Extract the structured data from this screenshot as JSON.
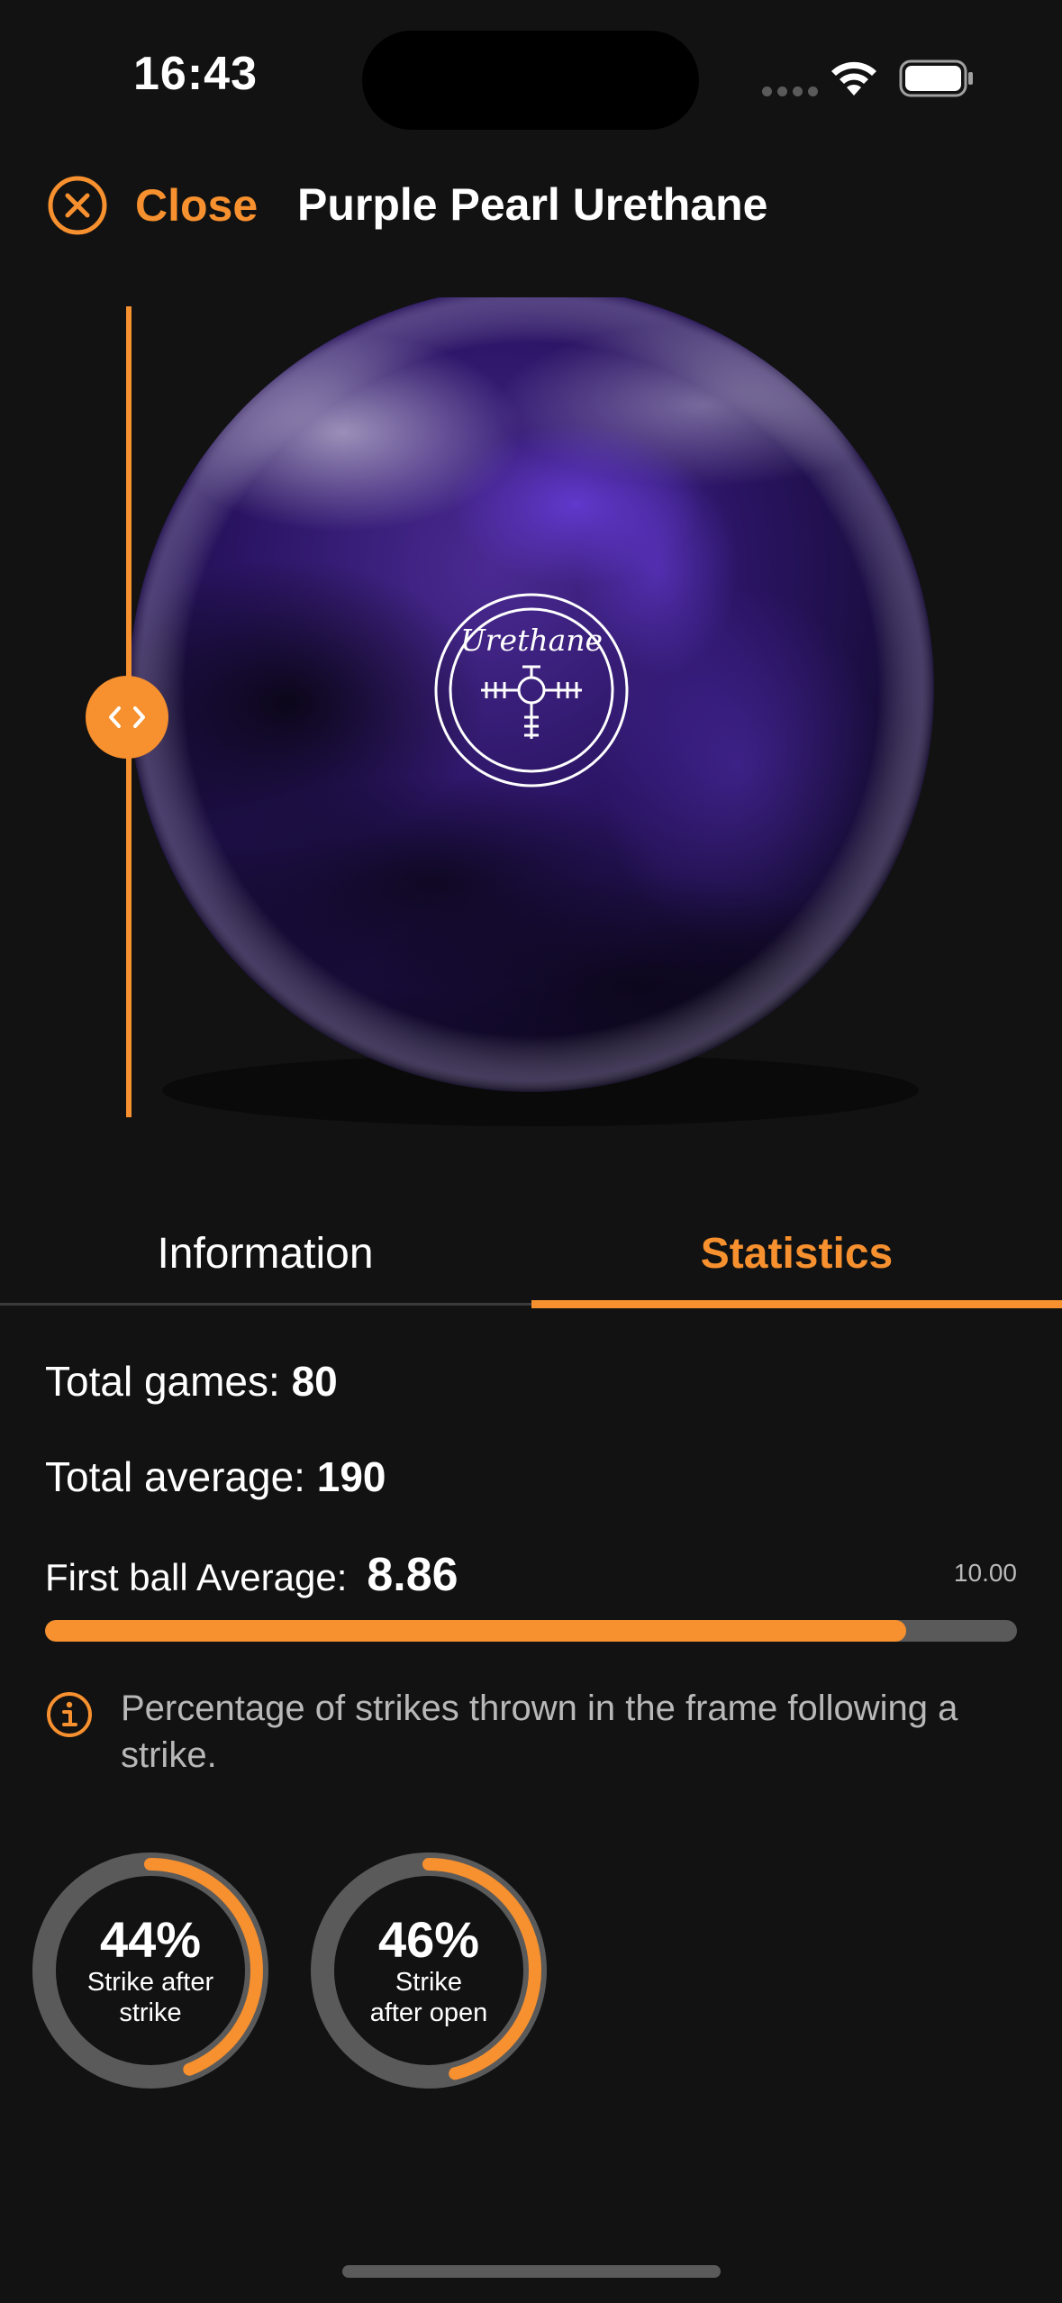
{
  "status_bar": {
    "time": "16:43"
  },
  "header": {
    "close_label": "Close",
    "title": "Purple Pearl Urethane"
  },
  "ball": {
    "logo_text": "Urethane"
  },
  "tabs": [
    {
      "label": "Information",
      "active": false
    },
    {
      "label": "Statistics",
      "active": true
    }
  ],
  "stats": {
    "total_games_label": "Total games:",
    "total_games_value": "80",
    "total_average_label": "Total average:",
    "total_average_value": "190",
    "first_ball_label": "First ball Average:",
    "first_ball_value": "8.86",
    "first_ball_max": "10.00",
    "first_ball_fraction": 0.886,
    "info_text": "Percentage of strikes thrown in the frame following a strike."
  },
  "donuts": [
    {
      "percent_label": "44%",
      "label": "Strike after\nstrike",
      "value": 0.44
    },
    {
      "percent_label": "46%",
      "label": "Strike\nafter open",
      "value": 0.46
    }
  ],
  "colors": {
    "accent": "#f7902e",
    "background": "#121212",
    "track": "#5a5a5a"
  }
}
